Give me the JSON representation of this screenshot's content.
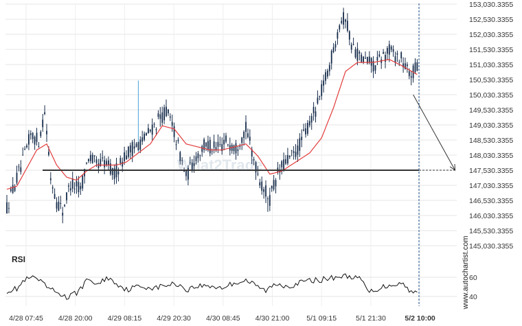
{
  "chart_data": [
    {
      "type": "candlestick",
      "title": "",
      "y_axis_position": "right",
      "ylim": [
        145030.3355,
        153030.3355
      ],
      "y_ticks": [
        "153,030.3355",
        "152,530.3355",
        "152,030.3355",
        "151,530.3355",
        "151,030.3355",
        "150,530.3355",
        "150,030.3355",
        "149,530.3355",
        "149,030.3355",
        "148,530.3355",
        "148,030.3355",
        "147,530.3355",
        "147,030.3355",
        "146,530.3355",
        "146,030.3355",
        "145,530.3355",
        "145,030.3355"
      ],
      "x_ticks": [
        "4/28 07:45",
        "4/28 20:00",
        "4/29 08:15",
        "4/29 20:30",
        "4/30 08:45",
        "4/30 21:00",
        "5/1 09:15",
        "5/1 21:30",
        "5/2 10:00"
      ],
      "x_tick_bold_index": 8,
      "level": 147530.3355,
      "price_path": [
        [
          0,
          146300
        ],
        [
          3,
          146900
        ],
        [
          8,
          147800
        ],
        [
          12,
          148700
        ],
        [
          16,
          148500
        ],
        [
          19,
          149500
        ],
        [
          22,
          147300
        ],
        [
          25,
          146500
        ],
        [
          28,
          146200
        ],
        [
          32,
          147100
        ],
        [
          37,
          146900
        ],
        [
          41,
          148000
        ],
        [
          45,
          147700
        ],
        [
          49,
          147800
        ],
        [
          54,
          147400
        ],
        [
          59,
          148000
        ],
        [
          64,
          148300
        ],
        [
          68,
          148500
        ],
        [
          74,
          149000
        ],
        [
          80,
          149500
        ],
        [
          84,
          148800
        ],
        [
          90,
          147300
        ],
        [
          95,
          148000
        ],
        [
          100,
          148400
        ],
        [
          105,
          148200
        ],
        [
          110,
          148500
        ],
        [
          115,
          148300
        ],
        [
          120,
          148900
        ],
        [
          124,
          147900
        ],
        [
          128,
          147000
        ],
        [
          132,
          146600
        ],
        [
          136,
          147400
        ],
        [
          140,
          147800
        ],
        [
          145,
          148100
        ],
        [
          150,
          148800
        ],
        [
          156,
          149700
        ],
        [
          162,
          151000
        ],
        [
          167,
          152400
        ],
        [
          170,
          152600
        ],
        [
          173,
          151700
        ],
        [
          178,
          151200
        ],
        [
          185,
          151000
        ],
        [
          192,
          151500
        ],
        [
          198,
          151200
        ],
        [
          202,
          150700
        ],
        [
          206,
          150900
        ]
      ],
      "ma_path": [
        [
          0,
          146900
        ],
        [
          5,
          147000
        ],
        [
          10,
          147600
        ],
        [
          15,
          148200
        ],
        [
          20,
          148400
        ],
        [
          25,
          147700
        ],
        [
          30,
          147300
        ],
        [
          35,
          147200
        ],
        [
          40,
          147500
        ],
        [
          45,
          147700
        ],
        [
          50,
          147700
        ],
        [
          55,
          147700
        ],
        [
          60,
          147800
        ],
        [
          66,
          148100
        ],
        [
          72,
          148400
        ],
        [
          78,
          149000
        ],
        [
          84,
          148900
        ],
        [
          90,
          148400
        ],
        [
          96,
          148300
        ],
        [
          102,
          148200
        ],
        [
          108,
          148200
        ],
        [
          114,
          148300
        ],
        [
          120,
          148400
        ],
        [
          126,
          148000
        ],
        [
          132,
          147400
        ],
        [
          138,
          147500
        ],
        [
          145,
          147800
        ],
        [
          152,
          148100
        ],
        [
          158,
          148600
        ],
        [
          164,
          149600
        ],
        [
          170,
          150800
        ],
        [
          176,
          151100
        ],
        [
          184,
          151100
        ],
        [
          192,
          151200
        ],
        [
          198,
          151000
        ],
        [
          206,
          150700
        ]
      ],
      "rsi": {
        "label": "RSI",
        "ylim": [
          30,
          75
        ],
        "y_ticks": [
          60,
          40
        ],
        "path": [
          [
            0,
            46
          ],
          [
            5,
            48
          ],
          [
            9,
            57
          ],
          [
            14,
            60
          ],
          [
            18,
            53
          ],
          [
            22,
            47
          ],
          [
            28,
            42
          ],
          [
            30,
            38
          ],
          [
            35,
            44
          ],
          [
            41,
            58
          ],
          [
            46,
            52
          ],
          [
            50,
            60
          ],
          [
            55,
            54
          ],
          [
            60,
            47
          ],
          [
            65,
            50
          ],
          [
            70,
            50
          ],
          [
            75,
            49
          ],
          [
            80,
            52
          ],
          [
            86,
            53
          ],
          [
            90,
            47
          ],
          [
            96,
            51
          ],
          [
            102,
            51
          ],
          [
            108,
            49
          ],
          [
            114,
            54
          ],
          [
            120,
            57
          ],
          [
            126,
            50
          ],
          [
            130,
            46
          ],
          [
            135,
            53
          ],
          [
            142,
            51
          ],
          [
            150,
            56
          ],
          [
            160,
            58
          ],
          [
            167,
            61
          ],
          [
            173,
            61
          ],
          [
            178,
            57
          ],
          [
            182,
            44
          ],
          [
            186,
            48
          ],
          [
            192,
            52
          ],
          [
            198,
            54
          ],
          [
            204,
            44
          ],
          [
            206,
            44
          ]
        ]
      },
      "projection": {
        "from": [
          204,
          150030.3355
        ],
        "to": [
          225,
          147530.3355
        ]
      },
      "watermark": "What2Trade",
      "side_text": "www.autochartist.com"
    }
  ]
}
